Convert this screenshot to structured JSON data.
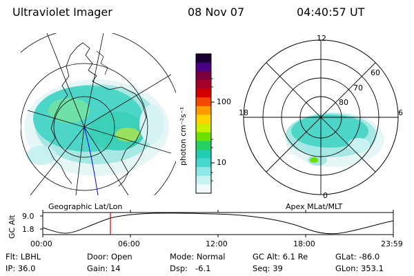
{
  "header": {
    "instrument": "Ultraviolet Imager",
    "date": "08 Nov 07",
    "time": "04:40:57 UT"
  },
  "left_panel": {
    "caption": "Geographic Lat/Lon"
  },
  "right_panel": {
    "caption": "Apex MLat/MLT",
    "mlt_labels": [
      "12",
      "18",
      "6",
      "0"
    ],
    "lat_labels": [
      "60",
      "70",
      "80"
    ]
  },
  "colorbar": {
    "unit_label": "photon cm⁻²s⁻¹",
    "ticks": [
      "100",
      "10"
    ],
    "colors": [
      "#1a0033",
      "#4b0082",
      "#7a003d",
      "#a5002a",
      "#d40000",
      "#f24800",
      "#ff9a00",
      "#ffd400",
      "#c8f000",
      "#6ee000",
      "#25d060",
      "#22ccb0",
      "#44d8d0",
      "#8ee8e8",
      "#c8f2f2",
      "#f2fbfb"
    ]
  },
  "altitude_plot": {
    "ylabel": "GC Alt",
    "y_ticks": [
      "9.0",
      "1.8"
    ],
    "x_ticks": [
      "00:00",
      "06:00",
      "12:00",
      "18:00",
      "23:59"
    ],
    "curve_color": "#000000",
    "marker_color": "#cc0000"
  },
  "info": {
    "flt": "Flt: LBHL",
    "door": "Door: Open",
    "mode": "Mode: Normal",
    "gc_alt": "GC Alt: 6.1 Re",
    "glat": "GLat: -86.0",
    "ip": "IP: 36.0",
    "gain": "Gain: 14",
    "dsp": "Dsp:   -6.1",
    "seq": "Seq: 39",
    "glon": "GLon: 353.1"
  }
}
